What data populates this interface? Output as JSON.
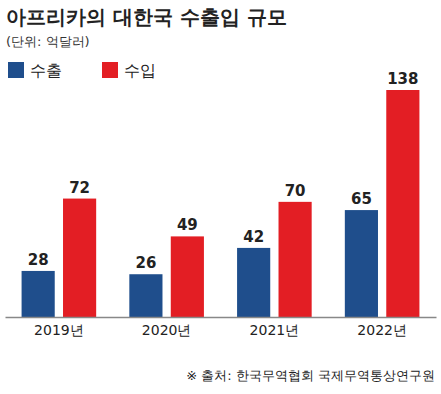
{
  "chart_data": {
    "type": "bar",
    "title": "아프리카의 대한국 수출입 규모",
    "subtitle": "(단위: 억달러)",
    "categories": [
      "2019년",
      "2020년",
      "2021년",
      "2022년"
    ],
    "series": [
      {
        "name": "수출",
        "color": "#1f4e8c",
        "values": [
          28,
          26,
          42,
          65
        ]
      },
      {
        "name": "수입",
        "color": "#e31e24",
        "values": [
          72,
          49,
          70,
          138
        ]
      }
    ],
    "ylim": [
      0,
      138
    ],
    "data_labels": true,
    "tick_labels": "x",
    "legend": "top-left",
    "annotations": [
      "※ 출처: 한국무역협회 국제무역통상연구원"
    ]
  }
}
